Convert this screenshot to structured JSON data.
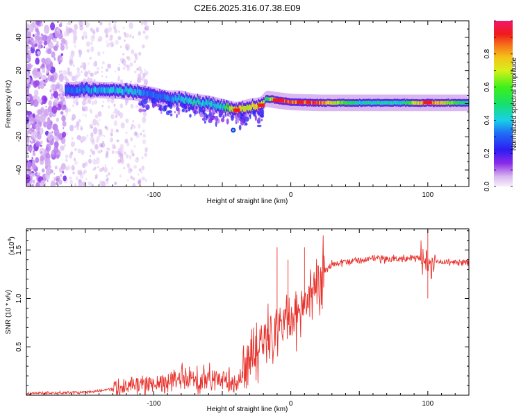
{
  "title": "C2E6.2025.316.07.38.E09",
  "chart_data": [
    {
      "type": "heatmap",
      "name": "spectrogram",
      "xlabel": "Height of straight line (km)",
      "ylabel": "Frequency (Hz)",
      "xlim": [
        -193,
        130
      ],
      "ylim": [
        -50,
        50
      ],
      "x_ticks": [
        -100,
        0,
        100
      ],
      "y_ticks": [
        -40,
        -20,
        0,
        20,
        40
      ],
      "colorbar": {
        "label": "Normalized spectral amplitude",
        "range": [
          0.0,
          1.0
        ],
        "ticks": [
          0.0,
          0.2,
          0.4,
          0.6,
          0.8
        ],
        "tick_labels": [
          "0.0",
          "0.2",
          "0.4",
          "0.6",
          "0.8"
        ]
      },
      "ridge": {
        "description": "dominant signal track (frequency in Hz vs height in km)",
        "x": [
          -165,
          -150,
          -130,
          -115,
          -100,
          -90,
          -80,
          -70,
          -60,
          -50,
          -40,
          -30,
          -22,
          -18,
          -10,
          0,
          20,
          50,
          80,
          100,
          130
        ],
        "y": [
          8,
          8.5,
          8,
          7,
          5,
          3,
          3,
          1,
          0,
          -2,
          -4,
          -2,
          -1,
          3,
          2,
          1,
          0.5,
          0.5,
          0.5,
          0.5,
          0.5
        ],
        "amplitude": [
          0.3,
          0.35,
          0.4,
          0.4,
          0.3,
          0.35,
          0.4,
          0.45,
          0.4,
          0.45,
          0.85,
          0.7,
          0.8,
          0.5,
          0.95,
          0.9,
          0.9,
          0.45,
          0.45,
          0.9,
          0.45
        ]
      },
      "noise_region_x": [
        -193,
        -120
      ]
    },
    {
      "type": "line",
      "name": "snr",
      "xlabel": "Height of straight line (km)",
      "ylabel": "SNR (10 * v/v)",
      "scale_label": "(x10",
      "scale_exponent": "4",
      "xlim": [
        -193,
        130
      ],
      "ylim": [
        0.0,
        1.72
      ],
      "x_ticks": [
        -100,
        0,
        100
      ],
      "y_ticks": [
        0.5,
        1.0,
        1.5
      ],
      "y_tick_labels": [
        "0.5",
        "1.0",
        "1.5"
      ],
      "series_color": "#e8322c",
      "envelope": {
        "description": "smoothed SNR level (units of 1e4) vs height (km)",
        "x": [
          -193,
          -150,
          -120,
          -100,
          -80,
          -60,
          -40,
          -32,
          -28,
          -20,
          -10,
          0,
          10,
          20,
          30,
          50,
          80,
          95,
          100,
          105,
          130
        ],
        "y": [
          0.02,
          0.03,
          0.08,
          0.13,
          0.15,
          0.16,
          0.15,
          0.25,
          0.45,
          0.55,
          0.7,
          0.8,
          0.95,
          1.2,
          1.35,
          1.4,
          1.41,
          1.42,
          1.4,
          1.38,
          1.37
        ]
      },
      "spikes": [
        {
          "x": -10,
          "y": 1.53
        },
        {
          "x": -2,
          "y": 1.4
        },
        {
          "x": 10,
          "y": 1.53
        },
        {
          "x": 100,
          "y": 1.72
        },
        {
          "x": 100,
          "y": 1.0
        }
      ]
    }
  ],
  "colors": {
    "background": "#ffffff",
    "axis": "#000000",
    "snr_line": "#e8322c"
  }
}
